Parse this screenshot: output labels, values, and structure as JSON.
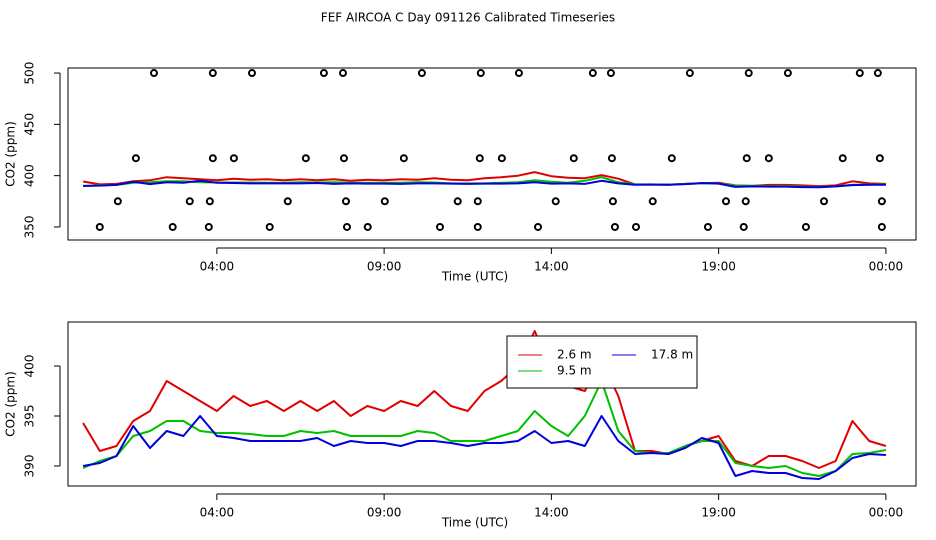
{
  "chart_data": [
    {
      "type": "scatter",
      "title": "FEF AIRCOA C  Day 091126  Calibrated Timeseries",
      "xlabel": "Time (UTC)",
      "ylabel": "CO2 (ppm)",
      "xlim": [
        -0.45,
        24.9
      ],
      "xticks": [
        {
          "value": 4,
          "label": "04:00"
        },
        {
          "value": 9,
          "label": "09:00"
        },
        {
          "value": 14,
          "label": "14:00"
        },
        {
          "value": 19,
          "label": "19:00"
        },
        {
          "value": 24,
          "label": "00:00"
        }
      ],
      "ylim": [
        337.3,
        504.9
      ],
      "yticks": [
        350,
        400,
        450,
        500
      ],
      "x": [
        2.12,
        3.88,
        5.05,
        7.2,
        7.77,
        10.13,
        11.89,
        13.03,
        15.24,
        15.78,
        18.14,
        19.9,
        21.07,
        23.22,
        23.76,
        1.58,
        3.88,
        4.51,
        6.66,
        7.8,
        9.59,
        11.86,
        12.52,
        14.67,
        15.81,
        17.6,
        19.84,
        20.5,
        22.71,
        23.82,
        1.04,
        3.19,
        3.79,
        6.12,
        7.86,
        9.02,
        11.2,
        11.8,
        14.13,
        15.84,
        17.03,
        19.22,
        19.81,
        22.15,
        23.88,
        0.5,
        2.68,
        3.76,
        5.58,
        7.89,
        8.51,
        10.67,
        11.8,
        13.6,
        15.9,
        16.53,
        18.68,
        19.75,
        21.61,
        23.88
      ],
      "y": [
        500,
        500,
        500,
        500,
        500,
        500,
        500,
        500,
        500,
        500,
        500,
        500,
        500,
        500,
        500,
        417,
        417,
        417,
        417,
        417,
        417,
        417,
        417,
        417,
        417,
        417,
        417,
        417,
        417,
        417,
        375,
        375,
        375,
        375,
        375,
        375,
        375,
        375,
        375,
        375,
        375,
        375,
        375,
        375,
        375,
        350,
        350,
        350,
        350,
        350,
        350,
        350,
        350,
        350,
        350,
        350,
        350,
        350,
        350,
        350
      ],
      "color": "#000000"
    },
    {
      "type": "line",
      "xlabel": "Time (UTC)",
      "ylabel": "CO2 (ppm)",
      "xlim": [
        -0.45,
        24.9
      ],
      "xticks": [
        {
          "value": 4,
          "label": "04:00"
        },
        {
          "value": 9,
          "label": "09:00"
        },
        {
          "value": 14,
          "label": "14:00"
        },
        {
          "value": 19,
          "label": "19:00"
        },
        {
          "value": 24,
          "label": "00:00"
        }
      ],
      "ylim": [
        388,
        404.4
      ],
      "yticks": [
        390,
        395,
        400
      ],
      "legend": "top",
      "x": [
        0,
        0.5,
        1,
        1.5,
        2,
        2.5,
        3,
        3.5,
        4,
        4.5,
        5,
        5.5,
        6,
        6.5,
        7,
        7.5,
        8,
        8.5,
        9,
        9.5,
        10,
        10.5,
        11,
        11.5,
        12,
        12.5,
        13,
        13.5,
        14,
        14.5,
        15,
        15.5,
        16,
        16.5,
        17,
        17.5,
        18,
        18.5,
        19,
        19.5,
        20,
        20.5,
        21,
        21.5,
        22,
        22.5,
        23,
        23.5,
        24
      ],
      "series": [
        {
          "name": "2.6 m",
          "color": "#e00000",
          "values": [
            394.3,
            391.5,
            392,
            394.5,
            395.5,
            398.5,
            397.5,
            396.5,
            395.5,
            397,
            396,
            396.5,
            395.5,
            396.5,
            395.5,
            396.5,
            395,
            396,
            395.5,
            396.5,
            396,
            397.5,
            396,
            395.5,
            397.5,
            398.5,
            400,
            403.5,
            399.5,
            398,
            397.5,
            400.5,
            397,
            391.5,
            391.5,
            391.2,
            392,
            392.5,
            393,
            390.5,
            390,
            391,
            391,
            390.5,
            389.8,
            390.5,
            394.5,
            392.5,
            392
          ]
        },
        {
          "name": "9.5 m",
          "color": "#00c000",
          "values": [
            389.8,
            390.5,
            391,
            393,
            393.5,
            394.5,
            394.5,
            393.5,
            393.3,
            393.3,
            393.2,
            393,
            393,
            393.5,
            393.3,
            393.5,
            393,
            393,
            393,
            393,
            393.5,
            393.3,
            392.5,
            392.5,
            392.5,
            393,
            393.5,
            395.5,
            394,
            393,
            395,
            398.5,
            393.5,
            391.5,
            391.3,
            391.3,
            392,
            392.5,
            392.5,
            390.3,
            390,
            389.8,
            390,
            389.3,
            389,
            389.5,
            391.2,
            391.3,
            391.6
          ]
        },
        {
          "name": "17.8 m",
          "color": "#0000dd",
          "values": [
            390,
            390.3,
            391,
            394,
            391.8,
            393.5,
            393,
            395,
            393,
            392.8,
            392.5,
            392.5,
            392.5,
            392.5,
            392.8,
            392,
            392.5,
            392.3,
            392.3,
            392,
            392.5,
            392.5,
            392.3,
            392,
            392.3,
            392.3,
            392.5,
            393.5,
            392.3,
            392.5,
            392,
            395,
            392.5,
            391.2,
            391.3,
            391.2,
            391.8,
            392.8,
            392.3,
            389,
            389.5,
            389.3,
            389.3,
            388.8,
            388.7,
            389.5,
            390.8,
            391.2,
            391.1
          ]
        }
      ]
    }
  ]
}
